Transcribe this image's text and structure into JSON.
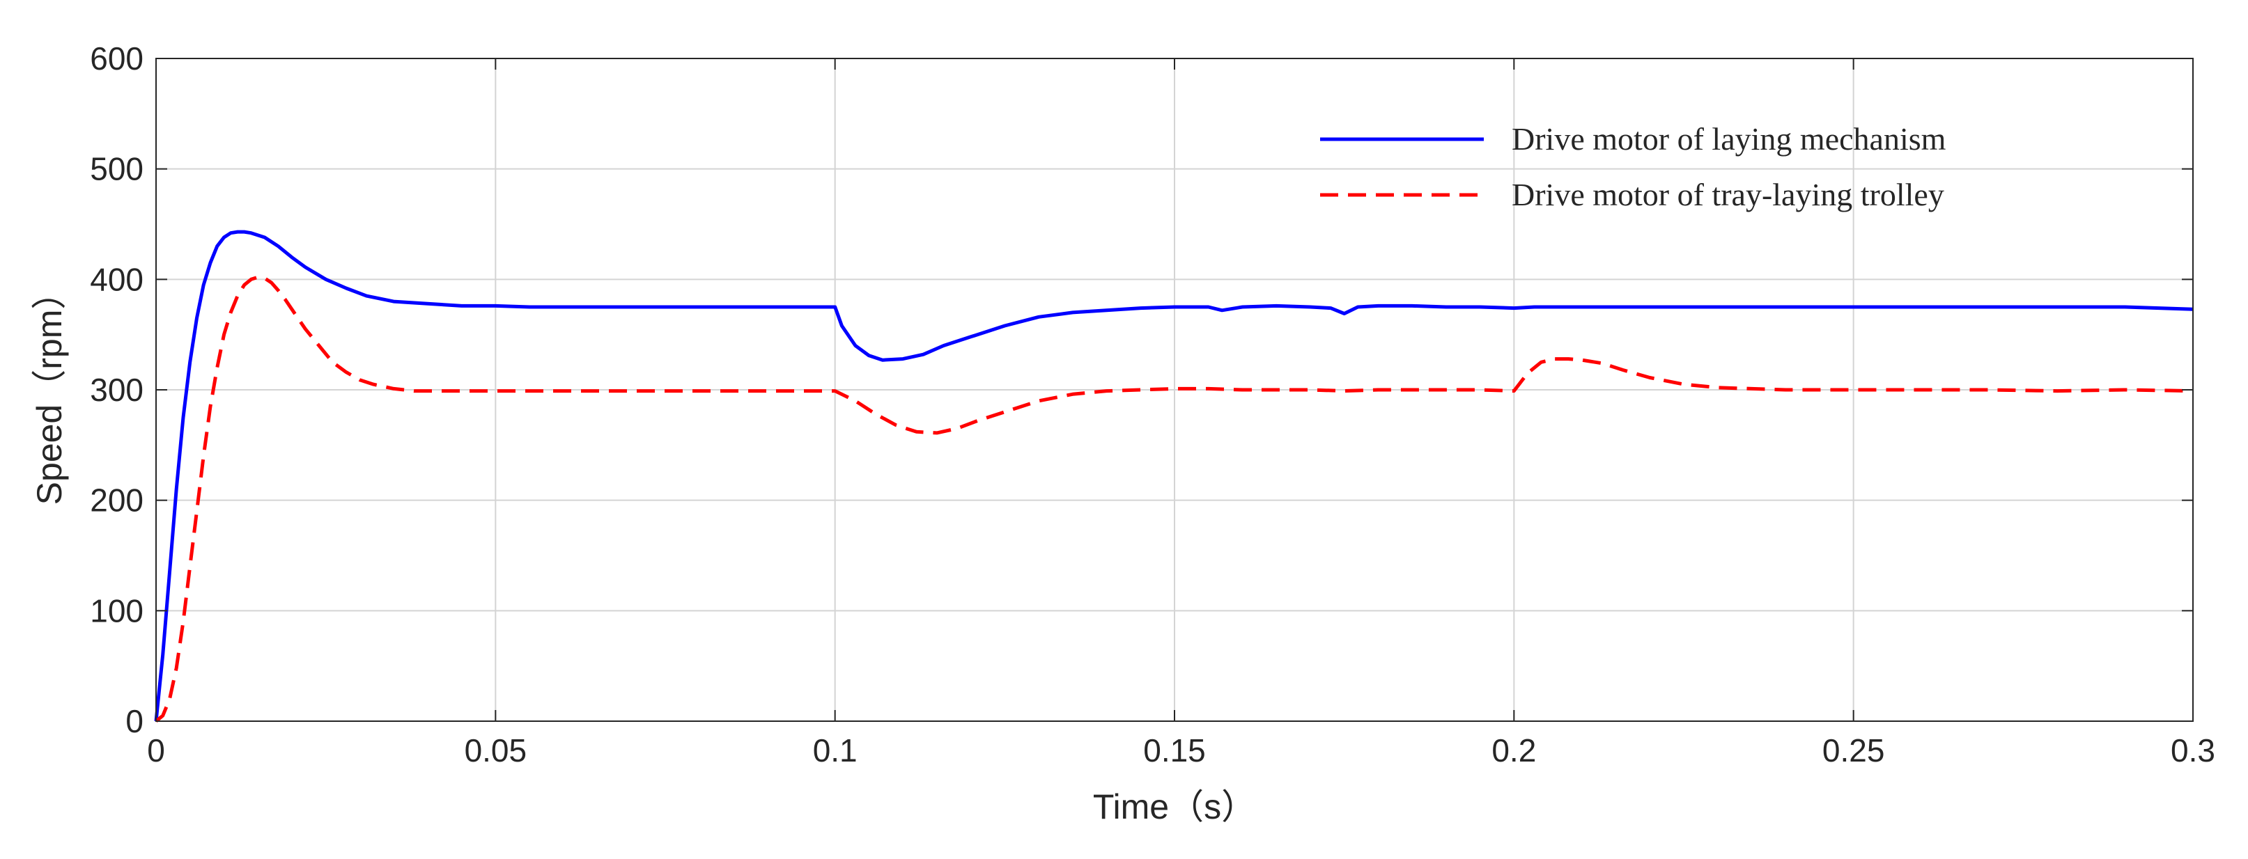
{
  "chart_data": {
    "type": "line",
    "title": "",
    "xlabel": "Time（s）",
    "ylabel": "Speed（rpm）",
    "xlim": [
      0,
      0.3
    ],
    "ylim": [
      0,
      600
    ],
    "xticks": [
      0,
      0.05,
      0.1,
      0.15,
      0.2,
      0.25,
      0.3
    ],
    "xtick_labels": [
      "0",
      "0.05",
      "0.1",
      "0.15",
      "0.2",
      "0.25",
      "0.3"
    ],
    "yticks": [
      0,
      100,
      200,
      300,
      400,
      500,
      600
    ],
    "ytick_labels": [
      "0",
      "100",
      "200",
      "300",
      "400",
      "500",
      "600"
    ],
    "grid": true,
    "legend_position": "top-right",
    "series": [
      {
        "name": "Drive motor of laying mechanism",
        "color": "#0000ff",
        "style": "solid",
        "x": [
          0,
          0.001,
          0.002,
          0.003,
          0.004,
          0.005,
          0.006,
          0.007,
          0.008,
          0.009,
          0.01,
          0.011,
          0.012,
          0.013,
          0.014,
          0.016,
          0.018,
          0.02,
          0.022,
          0.025,
          0.028,
          0.031,
          0.035,
          0.04,
          0.045,
          0.05,
          0.055,
          0.06,
          0.065,
          0.07,
          0.075,
          0.08,
          0.085,
          0.09,
          0.095,
          0.1,
          0.101,
          0.103,
          0.105,
          0.107,
          0.11,
          0.113,
          0.116,
          0.12,
          0.125,
          0.13,
          0.135,
          0.14,
          0.145,
          0.15,
          0.155,
          0.157,
          0.16,
          0.165,
          0.17,
          0.173,
          0.175,
          0.177,
          0.18,
          0.185,
          0.19,
          0.195,
          0.2,
          0.203,
          0.21,
          0.22,
          0.23,
          0.24,
          0.25,
          0.26,
          0.27,
          0.28,
          0.29,
          0.3
        ],
        "values": [
          0,
          60,
          135,
          210,
          275,
          325,
          365,
          395,
          415,
          430,
          438,
          442,
          443,
          443,
          442,
          438,
          430,
          420,
          411,
          400,
          392,
          385,
          380,
          378,
          376,
          376,
          375,
          375,
          375,
          375,
          375,
          375,
          375,
          375,
          375,
          375,
          358,
          340,
          331,
          327,
          328,
          332,
          340,
          348,
          358,
          366,
          370,
          372,
          374,
          375,
          375,
          372,
          375,
          376,
          375,
          374,
          369,
          375,
          376,
          376,
          375,
          375,
          374,
          375,
          375,
          375,
          375,
          375,
          375,
          375,
          375,
          375,
          375,
          373
        ]
      },
      {
        "name": "Drive motor of tray-laying trolley",
        "color": "#ff0000",
        "style": "dashed",
        "x": [
          0,
          0.001,
          0.002,
          0.003,
          0.004,
          0.005,
          0.006,
          0.007,
          0.008,
          0.009,
          0.01,
          0.011,
          0.012,
          0.013,
          0.014,
          0.015,
          0.016,
          0.017,
          0.018,
          0.019,
          0.02,
          0.022,
          0.024,
          0.026,
          0.028,
          0.03,
          0.032,
          0.035,
          0.038,
          0.042,
          0.046,
          0.05,
          0.055,
          0.06,
          0.065,
          0.07,
          0.075,
          0.08,
          0.085,
          0.09,
          0.095,
          0.1,
          0.103,
          0.106,
          0.109,
          0.112,
          0.115,
          0.118,
          0.121,
          0.125,
          0.13,
          0.135,
          0.14,
          0.145,
          0.15,
          0.155,
          0.16,
          0.165,
          0.17,
          0.175,
          0.18,
          0.185,
          0.19,
          0.195,
          0.2,
          0.202,
          0.204,
          0.206,
          0.208,
          0.21,
          0.213,
          0.216,
          0.22,
          0.225,
          0.23,
          0.235,
          0.24,
          0.245,
          0.25,
          0.26,
          0.27,
          0.28,
          0.29,
          0.3
        ],
        "values": [
          0,
          5,
          20,
          48,
          90,
          140,
          190,
          240,
          285,
          320,
          350,
          370,
          385,
          395,
          400,
          402,
          401,
          397,
          390,
          382,
          373,
          355,
          340,
          325,
          316,
          309,
          305,
          301,
          299,
          299,
          299,
          299,
          299,
          299,
          299,
          299,
          299,
          299,
          299,
          299,
          299,
          299,
          290,
          278,
          268,
          262,
          261,
          265,
          272,
          280,
          290,
          296,
          299,
          300,
          301,
          301,
          300,
          300,
          300,
          299,
          300,
          300,
          300,
          300,
          299,
          315,
          325,
          328,
          328,
          327,
          324,
          318,
          311,
          305,
          302,
          301,
          300,
          300,
          300,
          300,
          300,
          299,
          300,
          299
        ]
      }
    ]
  }
}
